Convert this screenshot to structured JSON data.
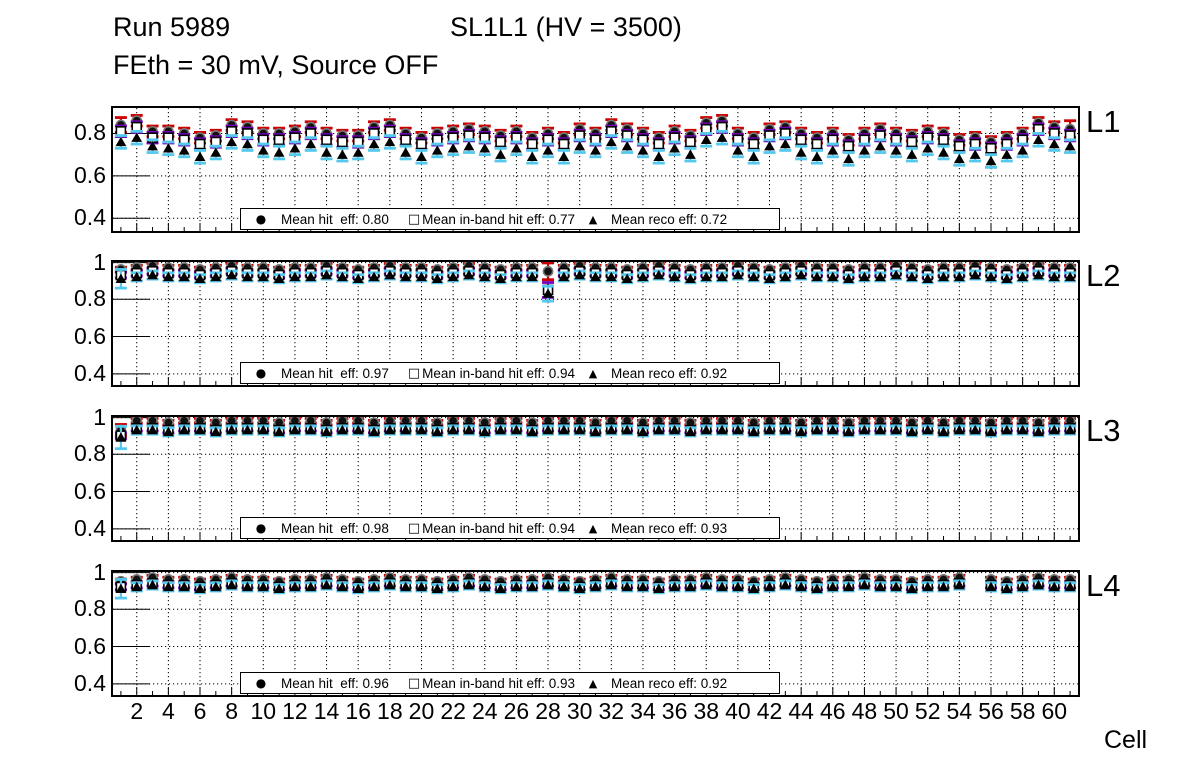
{
  "header": {
    "run_title": "Run 5989",
    "chamber_title": "SL1L1 (HV = 3500)",
    "condition_title": "FEth = 30 mV, Source OFF"
  },
  "colors": {
    "hit_err": "#cc0000",
    "inband_err": "#7700bb",
    "reco_err": "#55c8ee",
    "marker": "#111111",
    "grid": "#000000"
  },
  "xaxis": {
    "title": "Cell",
    "range": [
      0.5,
      61.5
    ],
    "tick_values": [
      2,
      4,
      6,
      8,
      10,
      12,
      14,
      16,
      18,
      20,
      22,
      24,
      26,
      28,
      30,
      32,
      34,
      36,
      38,
      40,
      42,
      44,
      46,
      48,
      50,
      52,
      54,
      56,
      58,
      60
    ],
    "tick_labels": [
      "2",
      "4",
      "6",
      "8",
      "10",
      "12",
      "14",
      "16",
      "18",
      "20",
      "22",
      "24",
      "26",
      "28",
      "30",
      "32",
      "34",
      "36",
      "38",
      "40",
      "42",
      "44",
      "46",
      "48",
      "50",
      "52",
      "54",
      "56",
      "58",
      "60"
    ]
  },
  "legend_glyphs": {
    "hit": "●",
    "inband": "□",
    "reco": "▲"
  },
  "chart_data": [
    {
      "type": "scatter",
      "layer_label": "L1",
      "ylim": [
        0.34,
        0.92
      ],
      "yticks": [
        {
          "label": "0.8",
          "value": 0.8
        },
        {
          "label": "0.6",
          "value": 0.6
        },
        {
          "label": "0.4",
          "value": 0.4
        }
      ],
      "x_cells_start": 1,
      "series": [
        {
          "name": "hit",
          "marker": "circle",
          "legend": "Mean hit  eff: 0.80",
          "mean": 0.8,
          "err": 0.025,
          "err_overrides": {
            "1": 0.035,
            "61": 0.04
          },
          "values": [
            0.84,
            0.86,
            0.81,
            0.81,
            0.8,
            0.78,
            0.79,
            0.84,
            0.83,
            0.8,
            0.8,
            0.81,
            0.83,
            0.8,
            0.79,
            0.79,
            0.83,
            0.84,
            0.8,
            0.78,
            0.8,
            0.81,
            0.82,
            0.81,
            0.79,
            0.81,
            0.78,
            0.8,
            0.78,
            0.82,
            0.8,
            0.84,
            0.82,
            0.8,
            0.78,
            0.81,
            0.79,
            0.85,
            0.86,
            0.8,
            0.78,
            0.82,
            0.83,
            0.8,
            0.78,
            0.8,
            0.77,
            0.8,
            0.82,
            0.8,
            0.79,
            0.81,
            0.8,
            0.77,
            0.78,
            0.76,
            0.78,
            0.8,
            0.85,
            0.83,
            0.82
          ]
        },
        {
          "name": "inband",
          "marker": "open-square",
          "legend": "Mean in-band hit eff: 0.77",
          "mean": 0.77,
          "err": 0.025,
          "err_overrides": {},
          "values": [
            0.81,
            0.83,
            0.78,
            0.78,
            0.77,
            0.75,
            0.76,
            0.81,
            0.8,
            0.77,
            0.77,
            0.78,
            0.8,
            0.77,
            0.76,
            0.76,
            0.8,
            0.81,
            0.77,
            0.75,
            0.77,
            0.78,
            0.79,
            0.78,
            0.76,
            0.78,
            0.75,
            0.77,
            0.75,
            0.79,
            0.77,
            0.81,
            0.79,
            0.77,
            0.75,
            0.78,
            0.76,
            0.82,
            0.83,
            0.77,
            0.75,
            0.79,
            0.8,
            0.77,
            0.75,
            0.77,
            0.74,
            0.77,
            0.79,
            0.77,
            0.76,
            0.78,
            0.77,
            0.74,
            0.75,
            0.73,
            0.75,
            0.77,
            0.82,
            0.8,
            0.79
          ]
        },
        {
          "name": "reco",
          "marker": "triangle",
          "legend": "Mean reco eff: 0.72",
          "mean": 0.72,
          "err": 0.03,
          "err_overrides": {},
          "values": [
            0.76,
            0.78,
            0.74,
            0.73,
            0.72,
            0.69,
            0.71,
            0.76,
            0.75,
            0.72,
            0.71,
            0.73,
            0.75,
            0.71,
            0.7,
            0.71,
            0.75,
            0.76,
            0.71,
            0.69,
            0.72,
            0.73,
            0.74,
            0.73,
            0.7,
            0.73,
            0.69,
            0.72,
            0.69,
            0.74,
            0.72,
            0.76,
            0.74,
            0.72,
            0.69,
            0.73,
            0.7,
            0.77,
            0.78,
            0.72,
            0.69,
            0.74,
            0.75,
            0.71,
            0.69,
            0.72,
            0.68,
            0.72,
            0.74,
            0.72,
            0.7,
            0.73,
            0.71,
            0.68,
            0.7,
            0.67,
            0.7,
            0.72,
            0.77,
            0.75,
            0.74
          ]
        }
      ]
    },
    {
      "type": "scatter",
      "layer_label": "L2",
      "ylim": [
        0.34,
        1.0
      ],
      "yticks": [
        {
          "label": "1",
          "value": 1.0
        },
        {
          "label": "0.8",
          "value": 0.8
        },
        {
          "label": "0.6",
          "value": 0.6
        },
        {
          "label": "0.4",
          "value": 0.4
        }
      ],
      "x_cells_start": 1,
      "series": [
        {
          "name": "hit",
          "marker": "circle",
          "legend": "Mean hit  eff: 0.97",
          "mean": 0.97,
          "err": 0.012,
          "err_overrides": {
            "28": 0.045
          },
          "values": [
            0.96,
            0.97,
            0.98,
            0.97,
            0.97,
            0.96,
            0.97,
            0.98,
            0.97,
            0.97,
            0.96,
            0.97,
            0.97,
            0.98,
            0.97,
            0.96,
            0.97,
            0.98,
            0.97,
            0.97,
            0.96,
            0.97,
            0.98,
            0.97,
            0.96,
            0.97,
            0.97,
            0.95,
            0.97,
            0.98,
            0.97,
            0.97,
            0.96,
            0.97,
            0.98,
            0.97,
            0.96,
            0.97,
            0.97,
            0.98,
            0.97,
            0.96,
            0.97,
            0.98,
            0.97,
            0.97,
            0.96,
            0.97,
            0.97,
            0.98,
            0.97,
            0.96,
            0.97,
            0.97,
            0.98,
            0.97,
            0.96,
            0.97,
            0.98,
            0.97,
            0.97
          ]
        },
        {
          "name": "inband",
          "marker": "open-square",
          "legend": "Mean in-band hit eff: 0.94",
          "mean": 0.94,
          "err": 0.015,
          "err_overrides": {
            "28": 0.04
          },
          "values": [
            0.93,
            0.94,
            0.95,
            0.94,
            0.94,
            0.93,
            0.94,
            0.95,
            0.94,
            0.94,
            0.93,
            0.94,
            0.94,
            0.95,
            0.94,
            0.93,
            0.94,
            0.95,
            0.94,
            0.94,
            0.93,
            0.94,
            0.95,
            0.94,
            0.93,
            0.94,
            0.94,
            0.85,
            0.94,
            0.95,
            0.94,
            0.94,
            0.93,
            0.94,
            0.95,
            0.94,
            0.93,
            0.94,
            0.94,
            0.95,
            0.94,
            0.93,
            0.94,
            0.95,
            0.94,
            0.94,
            0.93,
            0.94,
            0.94,
            0.95,
            0.94,
            0.93,
            0.94,
            0.94,
            0.95,
            0.94,
            0.93,
            0.94,
            0.95,
            0.94,
            0.94
          ]
        },
        {
          "name": "reco",
          "marker": "triangle",
          "legend": "Mean reco eff: 0.92",
          "mean": 0.92,
          "err": 0.022,
          "err_overrides": {
            "1": 0.05,
            "28": 0.04
          },
          "values": [
            0.91,
            0.92,
            0.93,
            0.92,
            0.92,
            0.91,
            0.92,
            0.93,
            0.92,
            0.92,
            0.91,
            0.92,
            0.92,
            0.93,
            0.92,
            0.91,
            0.92,
            0.93,
            0.92,
            0.92,
            0.91,
            0.92,
            0.93,
            0.92,
            0.91,
            0.92,
            0.92,
            0.83,
            0.92,
            0.93,
            0.92,
            0.92,
            0.91,
            0.92,
            0.93,
            0.92,
            0.91,
            0.92,
            0.92,
            0.93,
            0.92,
            0.91,
            0.92,
            0.93,
            0.92,
            0.92,
            0.91,
            0.92,
            0.92,
            0.93,
            0.92,
            0.91,
            0.92,
            0.92,
            0.93,
            0.92,
            0.91,
            0.92,
            0.93,
            0.92,
            0.92
          ]
        }
      ]
    },
    {
      "type": "scatter",
      "layer_label": "L3",
      "ylim": [
        0.34,
        1.0
      ],
      "yticks": [
        {
          "label": "1",
          "value": 1.0
        },
        {
          "label": "0.8",
          "value": 0.8
        },
        {
          "label": "0.6",
          "value": 0.6
        },
        {
          "label": "0.4",
          "value": 0.4
        }
      ],
      "x_cells_start": 1,
      "series": [
        {
          "name": "hit",
          "marker": "circle",
          "legend": "Mean hit  eff: 0.98",
          "mean": 0.98,
          "err": 0.012,
          "err_overrides": {
            "1": 0.03
          },
          "values": [
            0.93,
            0.98,
            0.98,
            0.97,
            0.98,
            0.98,
            0.97,
            0.98,
            0.98,
            0.98,
            0.97,
            0.98,
            0.98,
            0.97,
            0.98,
            0.98,
            0.97,
            0.98,
            0.98,
            0.98,
            0.97,
            0.98,
            0.98,
            0.97,
            0.98,
            0.98,
            0.97,
            0.98,
            0.98,
            0.98,
            0.97,
            0.98,
            0.98,
            0.97,
            0.98,
            0.98,
            0.97,
            0.98,
            0.98,
            0.98,
            0.97,
            0.98,
            0.98,
            0.97,
            0.98,
            0.98,
            0.97,
            0.98,
            0.98,
            0.98,
            0.97,
            0.98,
            0.97,
            0.98,
            0.98,
            0.97,
            0.98,
            0.98,
            0.97,
            0.98,
            0.98
          ]
        },
        {
          "name": "inband",
          "marker": "open-square",
          "legend": "Mean in-band hit eff: 0.94",
          "mean": 0.94,
          "err": 0.015,
          "err_overrides": {},
          "values": [
            0.9,
            0.94,
            0.94,
            0.93,
            0.94,
            0.94,
            0.93,
            0.94,
            0.94,
            0.94,
            0.93,
            0.94,
            0.94,
            0.93,
            0.94,
            0.94,
            0.93,
            0.94,
            0.94,
            0.94,
            0.93,
            0.94,
            0.94,
            0.93,
            0.94,
            0.94,
            0.93,
            0.94,
            0.94,
            0.94,
            0.93,
            0.94,
            0.94,
            0.93,
            0.94,
            0.94,
            0.93,
            0.94,
            0.94,
            0.94,
            0.93,
            0.94,
            0.94,
            0.93,
            0.94,
            0.94,
            0.93,
            0.94,
            0.94,
            0.94,
            0.93,
            0.94,
            0.93,
            0.94,
            0.94,
            0.93,
            0.94,
            0.94,
            0.93,
            0.94,
            0.94
          ]
        },
        {
          "name": "reco",
          "marker": "triangle",
          "legend": "Mean reco eff: 0.93",
          "mean": 0.93,
          "err": 0.022,
          "err_overrides": {
            "1": 0.06
          },
          "values": [
            0.89,
            0.93,
            0.93,
            0.92,
            0.93,
            0.93,
            0.92,
            0.93,
            0.93,
            0.93,
            0.92,
            0.93,
            0.93,
            0.92,
            0.93,
            0.93,
            0.92,
            0.93,
            0.93,
            0.93,
            0.92,
            0.93,
            0.93,
            0.92,
            0.93,
            0.93,
            0.92,
            0.93,
            0.93,
            0.93,
            0.92,
            0.93,
            0.93,
            0.92,
            0.93,
            0.93,
            0.92,
            0.93,
            0.93,
            0.93,
            0.92,
            0.93,
            0.93,
            0.92,
            0.93,
            0.93,
            0.92,
            0.93,
            0.93,
            0.93,
            0.92,
            0.93,
            0.92,
            0.93,
            0.93,
            0.92,
            0.93,
            0.93,
            0.92,
            0.93,
            0.93
          ]
        }
      ]
    },
    {
      "type": "scatter",
      "layer_label": "L4",
      "ylim": [
        0.34,
        1.0
      ],
      "yticks": [
        {
          "label": "1",
          "value": 1.0
        },
        {
          "label": "0.8",
          "value": 0.8
        },
        {
          "label": "0.6",
          "value": 0.6
        },
        {
          "label": "0.4",
          "value": 0.4
        }
      ],
      "x_cells_start": 1,
      "series": [
        {
          "name": "hit",
          "marker": "circle",
          "legend": "Mean hit  eff: 0.96",
          "mean": 0.96,
          "err": 0.012,
          "err_overrides": {},
          "values": [
            0.95,
            0.96,
            0.97,
            0.96,
            0.96,
            0.95,
            0.96,
            0.97,
            0.96,
            0.96,
            0.95,
            0.96,
            0.96,
            0.97,
            0.96,
            0.95,
            0.96,
            0.97,
            0.96,
            0.96,
            0.95,
            0.96,
            0.97,
            0.96,
            0.95,
            0.96,
            0.96,
            0.97,
            0.96,
            0.95,
            0.96,
            0.97,
            0.96,
            0.96,
            0.95,
            0.96,
            0.96,
            0.97,
            0.96,
            0.96,
            0.95,
            0.96,
            0.97,
            0.96,
            0.95,
            0.96,
            0.96,
            0.97,
            0.96,
            0.96,
            0.95,
            0.96,
            0.96,
            0.97,
            null,
            0.96,
            0.95,
            0.96,
            0.97,
            0.96,
            0.96
          ]
        },
        {
          "name": "inband",
          "marker": "open-square",
          "legend": "Mean in-band hit eff: 0.93",
          "mean": 0.93,
          "err": 0.015,
          "err_overrides": {},
          "values": [
            0.92,
            0.93,
            0.94,
            0.93,
            0.93,
            0.92,
            0.93,
            0.94,
            0.93,
            0.93,
            0.92,
            0.93,
            0.93,
            0.94,
            0.93,
            0.92,
            0.93,
            0.94,
            0.93,
            0.93,
            0.92,
            0.93,
            0.94,
            0.93,
            0.92,
            0.93,
            0.93,
            0.94,
            0.93,
            0.92,
            0.93,
            0.94,
            0.93,
            0.93,
            0.92,
            0.93,
            0.93,
            0.94,
            0.93,
            0.93,
            0.92,
            0.93,
            0.94,
            0.93,
            0.92,
            0.93,
            0.93,
            0.94,
            0.93,
            0.93,
            0.92,
            0.93,
            0.93,
            0.94,
            null,
            0.93,
            0.92,
            0.93,
            0.94,
            0.93,
            0.93
          ]
        },
        {
          "name": "reco",
          "marker": "triangle",
          "legend": "Mean reco eff: 0.92",
          "mean": 0.92,
          "err": 0.022,
          "err_overrides": {
            "1": 0.05
          },
          "values": [
            0.91,
            0.92,
            0.93,
            0.92,
            0.92,
            0.91,
            0.92,
            0.93,
            0.92,
            0.92,
            0.91,
            0.92,
            0.92,
            0.93,
            0.92,
            0.91,
            0.92,
            0.93,
            0.92,
            0.92,
            0.91,
            0.92,
            0.93,
            0.92,
            0.91,
            0.92,
            0.92,
            0.93,
            0.92,
            0.91,
            0.92,
            0.93,
            0.92,
            0.92,
            0.91,
            0.92,
            0.92,
            0.93,
            0.92,
            0.92,
            0.91,
            0.92,
            0.93,
            0.92,
            0.91,
            0.92,
            0.92,
            0.93,
            0.92,
            0.92,
            0.91,
            0.92,
            0.92,
            0.93,
            null,
            0.92,
            0.91,
            0.92,
            0.93,
            0.92,
            0.92
          ]
        }
      ]
    }
  ]
}
